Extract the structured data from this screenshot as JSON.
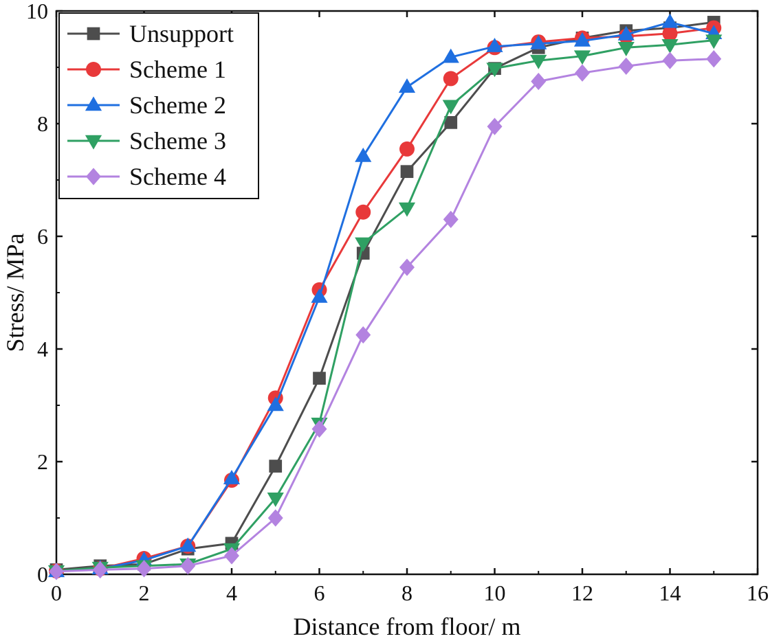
{
  "chart_data": {
    "type": "line",
    "title": "",
    "xlabel": "Distance from floor/ m",
    "ylabel": "Stress/ MPa",
    "xlim": [
      0,
      16
    ],
    "ylim": [
      0,
      10
    ],
    "xticks": [
      0,
      2,
      4,
      6,
      8,
      10,
      12,
      14,
      16
    ],
    "yticks": [
      0,
      2,
      4,
      6,
      8,
      10
    ],
    "grid": false,
    "legend_position": "top-left",
    "x": [
      0,
      1,
      2,
      3,
      4,
      5,
      6,
      7,
      8,
      9,
      10,
      11,
      12,
      13,
      14,
      15
    ],
    "series": [
      {
        "name": "Unsupport",
        "color": "#4d4d4d",
        "marker": "square",
        "values": [
          0.08,
          0.15,
          0.18,
          0.45,
          0.55,
          1.92,
          3.48,
          5.7,
          7.15,
          8.02,
          8.98,
          9.35,
          9.52,
          9.65,
          9.7,
          9.8
        ]
      },
      {
        "name": "Scheme 1",
        "color": "#e8393a",
        "marker": "circle",
        "values": [
          0.06,
          0.1,
          0.28,
          0.5,
          1.67,
          3.13,
          5.05,
          6.43,
          7.55,
          8.8,
          9.35,
          9.45,
          9.52,
          9.55,
          9.6,
          9.7
        ]
      },
      {
        "name": "Scheme 2",
        "color": "#1f6fe0",
        "marker": "triangle-up",
        "values": [
          0.05,
          0.1,
          0.25,
          0.5,
          1.7,
          3.0,
          4.92,
          7.42,
          8.65,
          9.18,
          9.37,
          9.42,
          9.47,
          9.58,
          9.8,
          9.6
        ]
      },
      {
        "name": "Scheme 3",
        "color": "#2fa063",
        "marker": "triangle-down",
        "values": [
          0.06,
          0.12,
          0.15,
          0.18,
          0.45,
          1.35,
          2.68,
          5.88,
          6.5,
          8.32,
          8.98,
          9.12,
          9.2,
          9.35,
          9.4,
          9.48
        ]
      },
      {
        "name": "Scheme 4",
        "color": "#b383e0",
        "marker": "diamond",
        "values": [
          0.05,
          0.08,
          0.1,
          0.15,
          0.33,
          1.0,
          2.58,
          4.25,
          5.45,
          6.3,
          7.95,
          8.75,
          8.9,
          9.02,
          9.12,
          9.15
        ]
      }
    ]
  }
}
